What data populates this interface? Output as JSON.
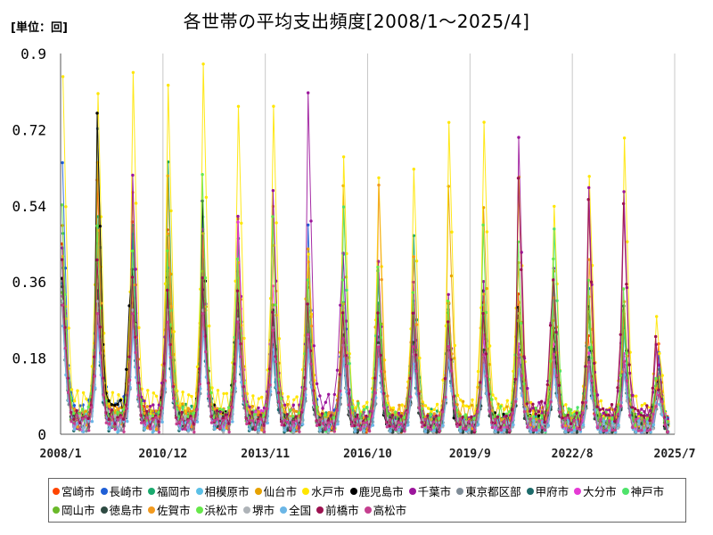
{
  "chart_data": {
    "type": "line",
    "title": "各世帯の平均支出頻度[2008/1～2025/4]",
    "unit_label": "[単位：回]",
    "xlabel": "",
    "ylabel": "",
    "ylim": [
      0,
      0.9
    ],
    "y_ticks": [
      "0",
      "0.18",
      "0.36",
      "0.54",
      "0.72",
      "0.9"
    ],
    "x_ticks": [
      {
        "label": "2008/1",
        "t": 0
      },
      {
        "label": "2010/12",
        "t": 35
      },
      {
        "label": "2013/11",
        "t": 70
      },
      {
        "label": "2016/10",
        "t": 105
      },
      {
        "label": "2019/9",
        "t": 140
      },
      {
        "label": "2022/8",
        "t": 175
      },
      {
        "label": "2025/7",
        "t": 210
      }
    ],
    "x_range": [
      "2008/1",
      "2025/7"
    ],
    "grid": "vertical",
    "legend_position": "bottom",
    "series": [
      {
        "name": "宮崎市",
        "color": "#ff4500",
        "peaks": [
          0.45,
          0.6,
          0.5,
          0.48,
          0.43,
          0.38,
          0.3,
          0.34,
          0.3,
          0.3,
          0.28,
          0.3,
          0.3,
          0.32,
          0.35,
          0.22,
          0.28,
          0.2
        ]
      },
      {
        "name": "長崎市",
        "color": "#1f5fd6",
        "peaks": [
          0.63,
          0.71,
          0.46,
          0.38,
          0.5,
          0.37,
          0.24,
          0.48,
          0.41,
          0.35,
          0.3,
          0.28,
          0.22,
          0.28,
          0.32,
          0.33,
          0.25,
          0.18
        ]
      },
      {
        "name": "福岡市",
        "color": "#1aaa6e",
        "peaks": [
          0.46,
          0.5,
          0.48,
          0.63,
          0.4,
          0.45,
          0.26,
          0.38,
          0.3,
          0.3,
          0.46,
          0.3,
          0.27,
          0.28,
          0.3,
          0.2,
          0.25,
          0.15
        ]
      },
      {
        "name": "相模原市",
        "color": "#5bc0e6",
        "peaks": [
          0.35,
          0.3,
          0.28,
          0.33,
          0.3,
          0.28,
          0.22,
          0.3,
          0.25,
          0.27,
          0.25,
          0.2,
          0.2,
          0.22,
          0.2,
          0.18,
          0.18,
          0.12
        ]
      },
      {
        "name": "仙台市",
        "color": "#e6a100",
        "peaks": [
          0.5,
          0.65,
          0.58,
          0.62,
          0.48,
          0.52,
          0.55,
          0.45,
          0.6,
          0.42,
          0.32,
          0.6,
          0.55,
          0.42,
          0.4,
          0.34,
          0.3,
          0.15
        ]
      },
      {
        "name": "水戸市",
        "color": "#ffe600",
        "peaks": [
          0.86,
          0.82,
          0.87,
          0.84,
          0.89,
          0.79,
          0.79,
          0.44,
          0.67,
          0.62,
          0.64,
          0.75,
          0.75,
          0.62,
          0.55,
          0.62,
          0.71,
          0.2
        ]
      },
      {
        "name": "鹿児島市",
        "color": "#000000",
        "peaks": [
          0.38,
          0.77,
          0.4,
          0.38,
          0.56,
          0.35,
          0.3,
          0.26,
          0.2,
          0.2,
          0.22,
          0.18,
          0.34,
          0.3,
          0.25,
          0.3,
          0.3,
          0.12
        ]
      },
      {
        "name": "千葉市",
        "color": "#9b159b",
        "peaks": [
          0.44,
          0.45,
          0.61,
          0.35,
          0.48,
          0.51,
          0.57,
          0.8,
          0.42,
          0.4,
          0.35,
          0.32,
          0.35,
          0.69,
          0.38,
          0.57,
          0.56,
          0.15
        ]
      },
      {
        "name": "東京都区部",
        "color": "#7f8c97",
        "peaks": [
          0.3,
          0.3,
          0.28,
          0.27,
          0.28,
          0.26,
          0.22,
          0.2,
          0.2,
          0.2,
          0.2,
          0.18,
          0.18,
          0.17,
          0.16,
          0.16,
          0.15,
          0.1
        ]
      },
      {
        "name": "甲府市",
        "color": "#1c6b6b",
        "peaks": [
          0.3,
          0.28,
          0.3,
          0.27,
          0.3,
          0.25,
          0.2,
          0.22,
          0.2,
          0.22,
          0.2,
          0.22,
          0.18,
          0.2,
          0.18,
          0.17,
          0.18,
          0.1
        ]
      },
      {
        "name": "大分市",
        "color": "#e53ad4",
        "peaks": [
          0.32,
          0.35,
          0.34,
          0.32,
          0.34,
          0.5,
          0.35,
          0.3,
          0.3,
          0.28,
          0.26,
          0.25,
          0.24,
          0.22,
          0.22,
          0.2,
          0.2,
          0.12
        ]
      },
      {
        "name": "神戸市",
        "color": "#4fe36b",
        "peaks": [
          0.4,
          0.38,
          0.35,
          0.48,
          0.33,
          0.38,
          0.3,
          0.3,
          0.55,
          0.3,
          0.28,
          0.28,
          0.32,
          0.3,
          0.5,
          0.28,
          0.26,
          0.12
        ]
      },
      {
        "name": "岡山市",
        "color": "#6ab92a",
        "peaks": [
          0.35,
          0.42,
          0.36,
          0.4,
          0.4,
          0.33,
          0.32,
          0.3,
          0.3,
          0.4,
          0.3,
          0.3,
          0.3,
          0.28,
          0.28,
          0.3,
          0.3,
          0.12
        ]
      },
      {
        "name": "徳島市",
        "color": "#2e4b43",
        "peaks": [
          0.36,
          0.35,
          0.32,
          0.35,
          0.35,
          0.3,
          0.3,
          0.24,
          0.24,
          0.22,
          0.22,
          0.2,
          0.2,
          0.18,
          0.2,
          0.18,
          0.3,
          0.1
        ]
      },
      {
        "name": "佐賀市",
        "color": "#f29a1f",
        "peaks": [
          0.42,
          0.48,
          0.35,
          0.47,
          0.47,
          0.4,
          0.44,
          0.4,
          0.3,
          0.58,
          0.41,
          0.3,
          0.32,
          0.3,
          0.31,
          0.4,
          0.3,
          0.12
        ]
      },
      {
        "name": "浜松市",
        "color": "#66e84a",
        "peaks": [
          0.53,
          0.48,
          0.42,
          0.42,
          0.6,
          0.4,
          0.5,
          0.35,
          0.35,
          0.38,
          0.32,
          0.3,
          0.48,
          0.44,
          0.4,
          0.35,
          0.33,
          0.12
        ]
      },
      {
        "name": "堺市",
        "color": "#aeb3b8",
        "peaks": [
          0.3,
          0.3,
          0.28,
          0.28,
          0.28,
          0.26,
          0.24,
          0.22,
          0.2,
          0.2,
          0.18,
          0.2,
          0.18,
          0.18,
          0.17,
          0.16,
          0.15,
          0.1
        ]
      },
      {
        "name": "全国",
        "color": "#6bb6e6",
        "peaks": [
          0.25,
          0.25,
          0.24,
          0.24,
          0.24,
          0.22,
          0.2,
          0.2,
          0.18,
          0.18,
          0.17,
          0.18,
          0.17,
          0.16,
          0.16,
          0.15,
          0.15,
          0.08
        ]
      },
      {
        "name": "前橋市",
        "color": "#9c1150",
        "peaks": [
          0.42,
          0.42,
          0.38,
          0.35,
          0.38,
          0.35,
          0.3,
          0.32,
          0.3,
          0.3,
          0.3,
          0.28,
          0.3,
          0.62,
          0.38,
          0.57,
          0.56,
          0.12
        ]
      },
      {
        "name": "高松市",
        "color": "#c53f8f",
        "peaks": [
          0.32,
          0.3,
          0.3,
          0.28,
          0.3,
          0.28,
          0.26,
          0.25,
          0.24,
          0.22,
          0.22,
          0.22,
          0.2,
          0.2,
          0.2,
          0.18,
          0.18,
          0.1
        ]
      }
    ]
  }
}
